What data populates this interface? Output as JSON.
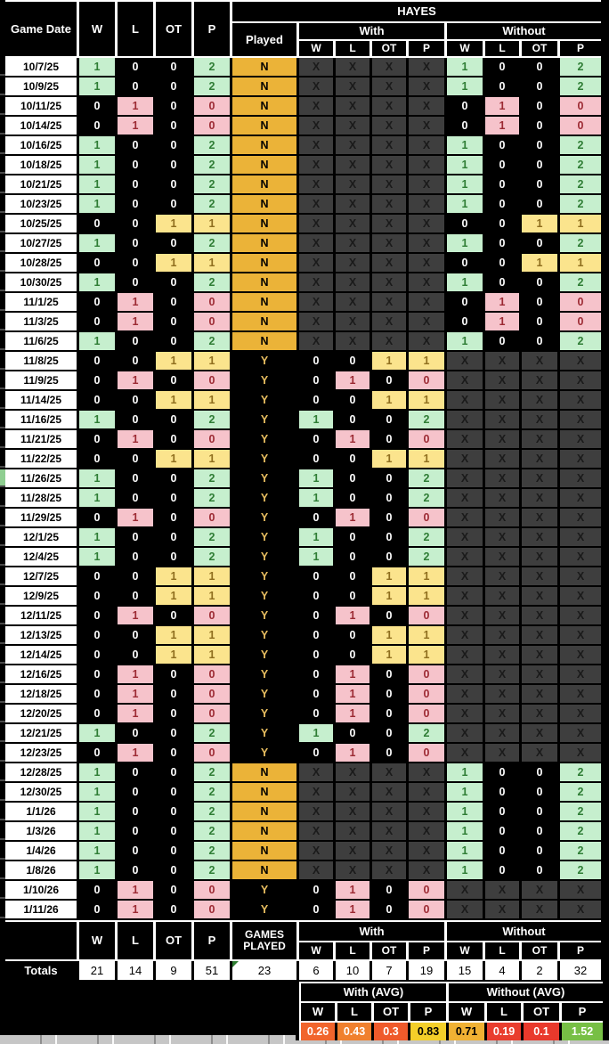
{
  "title": {
    "team": "HAYES"
  },
  "columns": {
    "game_date": "Game Date",
    "w": "W",
    "l": "L",
    "ot": "OT",
    "p": "P",
    "played": "Played",
    "with_label": "With",
    "without_label": "Without"
  },
  "na_marker": "X",
  "rows": [
    {
      "date": "10/7/25",
      "w": 1,
      "l": 0,
      "ot": 0,
      "p": 2,
      "played": "N"
    },
    {
      "date": "10/9/25",
      "w": 1,
      "l": 0,
      "ot": 0,
      "p": 2,
      "played": "N"
    },
    {
      "date": "10/11/25",
      "w": 0,
      "l": 1,
      "ot": 0,
      "p": 0,
      "played": "N"
    },
    {
      "date": "10/14/25",
      "w": 0,
      "l": 1,
      "ot": 0,
      "p": 0,
      "played": "N"
    },
    {
      "date": "10/16/25",
      "w": 1,
      "l": 0,
      "ot": 0,
      "p": 2,
      "played": "N"
    },
    {
      "date": "10/18/25",
      "w": 1,
      "l": 0,
      "ot": 0,
      "p": 2,
      "played": "N"
    },
    {
      "date": "10/21/25",
      "w": 1,
      "l": 0,
      "ot": 0,
      "p": 2,
      "played": "N"
    },
    {
      "date": "10/23/25",
      "w": 1,
      "l": 0,
      "ot": 0,
      "p": 2,
      "played": "N"
    },
    {
      "date": "10/25/25",
      "w": 0,
      "l": 0,
      "ot": 1,
      "p": 1,
      "played": "N"
    },
    {
      "date": "10/27/25",
      "w": 1,
      "l": 0,
      "ot": 0,
      "p": 2,
      "played": "N"
    },
    {
      "date": "10/28/25",
      "w": 0,
      "l": 0,
      "ot": 1,
      "p": 1,
      "played": "N"
    },
    {
      "date": "10/30/25",
      "w": 1,
      "l": 0,
      "ot": 0,
      "p": 2,
      "played": "N"
    },
    {
      "date": "11/1/25",
      "w": 0,
      "l": 1,
      "ot": 0,
      "p": 0,
      "played": "N"
    },
    {
      "date": "11/3/25",
      "w": 0,
      "l": 1,
      "ot": 0,
      "p": 0,
      "played": "N"
    },
    {
      "date": "11/6/25",
      "w": 1,
      "l": 0,
      "ot": 0,
      "p": 2,
      "played": "N"
    },
    {
      "date": "11/8/25",
      "w": 0,
      "l": 0,
      "ot": 1,
      "p": 1,
      "played": "Y"
    },
    {
      "date": "11/9/25",
      "w": 0,
      "l": 1,
      "ot": 0,
      "p": 0,
      "played": "Y"
    },
    {
      "date": "11/14/25",
      "w": 0,
      "l": 0,
      "ot": 1,
      "p": 1,
      "played": "Y"
    },
    {
      "date": "11/16/25",
      "w": 1,
      "l": 0,
      "ot": 0,
      "p": 2,
      "played": "Y"
    },
    {
      "date": "11/21/25",
      "w": 0,
      "l": 1,
      "ot": 0,
      "p": 0,
      "played": "Y"
    },
    {
      "date": "11/22/25",
      "w": 0,
      "l": 0,
      "ot": 1,
      "p": 1,
      "played": "Y"
    },
    {
      "date": "11/26/25",
      "w": 1,
      "l": 0,
      "ot": 0,
      "p": 2,
      "played": "Y"
    },
    {
      "date": "11/28/25",
      "w": 1,
      "l": 0,
      "ot": 0,
      "p": 2,
      "played": "Y"
    },
    {
      "date": "11/29/25",
      "w": 0,
      "l": 1,
      "ot": 0,
      "p": 0,
      "played": "Y"
    },
    {
      "date": "12/1/25",
      "w": 1,
      "l": 0,
      "ot": 0,
      "p": 2,
      "played": "Y"
    },
    {
      "date": "12/4/25",
      "w": 1,
      "l": 0,
      "ot": 0,
      "p": 2,
      "played": "Y"
    },
    {
      "date": "12/7/25",
      "w": 0,
      "l": 0,
      "ot": 1,
      "p": 1,
      "played": "Y"
    },
    {
      "date": "12/9/25",
      "w": 0,
      "l": 0,
      "ot": 1,
      "p": 1,
      "played": "Y"
    },
    {
      "date": "12/11/25",
      "w": 0,
      "l": 1,
      "ot": 0,
      "p": 0,
      "played": "Y"
    },
    {
      "date": "12/13/25",
      "w": 0,
      "l": 0,
      "ot": 1,
      "p": 1,
      "played": "Y"
    },
    {
      "date": "12/14/25",
      "w": 0,
      "l": 0,
      "ot": 1,
      "p": 1,
      "played": "Y"
    },
    {
      "date": "12/16/25",
      "w": 0,
      "l": 1,
      "ot": 0,
      "p": 0,
      "played": "Y"
    },
    {
      "date": "12/18/25",
      "w": 0,
      "l": 1,
      "ot": 0,
      "p": 0,
      "played": "Y"
    },
    {
      "date": "12/20/25",
      "w": 0,
      "l": 1,
      "ot": 0,
      "p": 0,
      "played": "Y"
    },
    {
      "date": "12/21/25",
      "w": 1,
      "l": 0,
      "ot": 0,
      "p": 2,
      "played": "Y"
    },
    {
      "date": "12/23/25",
      "w": 0,
      "l": 1,
      "ot": 0,
      "p": 0,
      "played": "Y"
    },
    {
      "date": "12/28/25",
      "w": 1,
      "l": 0,
      "ot": 0,
      "p": 2,
      "played": "N"
    },
    {
      "date": "12/30/25",
      "w": 1,
      "l": 0,
      "ot": 0,
      "p": 2,
      "played": "N"
    },
    {
      "date": "1/1/26",
      "w": 1,
      "l": 0,
      "ot": 0,
      "p": 2,
      "played": "N"
    },
    {
      "date": "1/3/26",
      "w": 1,
      "l": 0,
      "ot": 0,
      "p": 2,
      "played": "N"
    },
    {
      "date": "1/4/26",
      "w": 1,
      "l": 0,
      "ot": 0,
      "p": 2,
      "played": "N"
    },
    {
      "date": "1/8/26",
      "w": 1,
      "l": 0,
      "ot": 0,
      "p": 2,
      "played": "N"
    },
    {
      "date": "1/10/26",
      "w": 0,
      "l": 1,
      "ot": 0,
      "p": 0,
      "played": "Y"
    },
    {
      "date": "1/11/26",
      "w": 0,
      "l": 1,
      "ot": 0,
      "p": 0,
      "played": "Y"
    }
  ],
  "totals": {
    "label": "Totals",
    "w": 21,
    "l": 14,
    "ot": 9,
    "p": 51,
    "games_played_label": "GAMES PLAYED",
    "games_played": 23,
    "with": {
      "w": 6,
      "l": 10,
      "ot": 7,
      "p": 19
    },
    "without": {
      "w": 15,
      "l": 4,
      "ot": 2,
      "p": 32
    }
  },
  "averages": {
    "with_label": "With (AVG)",
    "without_label": "Without (AVG)",
    "with": [
      {
        "stat": "W",
        "value": "0.26",
        "bg": "#F1652C",
        "fg": "#FFFFFF"
      },
      {
        "stat": "L",
        "value": "0.43",
        "bg": "#F0802E",
        "fg": "#FFFFFF"
      },
      {
        "stat": "OT",
        "value": "0.3",
        "bg": "#EF5A2B",
        "fg": "#FFFFFF"
      },
      {
        "stat": "P",
        "value": "0.83",
        "bg": "#F4CF29",
        "fg": "#000000"
      }
    ],
    "without": [
      {
        "stat": "W",
        "value": "0.71",
        "bg": "#F0B133",
        "fg": "#000000"
      },
      {
        "stat": "L",
        "value": "0.19",
        "bg": "#E93D2E",
        "fg": "#FFFFFF"
      },
      {
        "stat": "OT",
        "value": "0.1",
        "bg": "#E9392C",
        "fg": "#FFFFFF"
      },
      {
        "stat": "P",
        "value": "1.52",
        "bg": "#77BF45",
        "fg": "#FFFFFF"
      }
    ]
  },
  "colors": {
    "win_bg": "#C6EFCE",
    "win_fg": "#2F7D35",
    "loss_bg": "#F6C3CB",
    "loss_fg": "#9C2A33",
    "ot_bg": "#FBE48D",
    "ot_fg": "#8F6E1E",
    "na_bg": "#3E3E3E",
    "na_fg": "#1A1A1A",
    "played_no_bg": "#EBB338",
    "played_yes_fg": "#E8BE60",
    "note_triangle": "#2E7D32"
  }
}
